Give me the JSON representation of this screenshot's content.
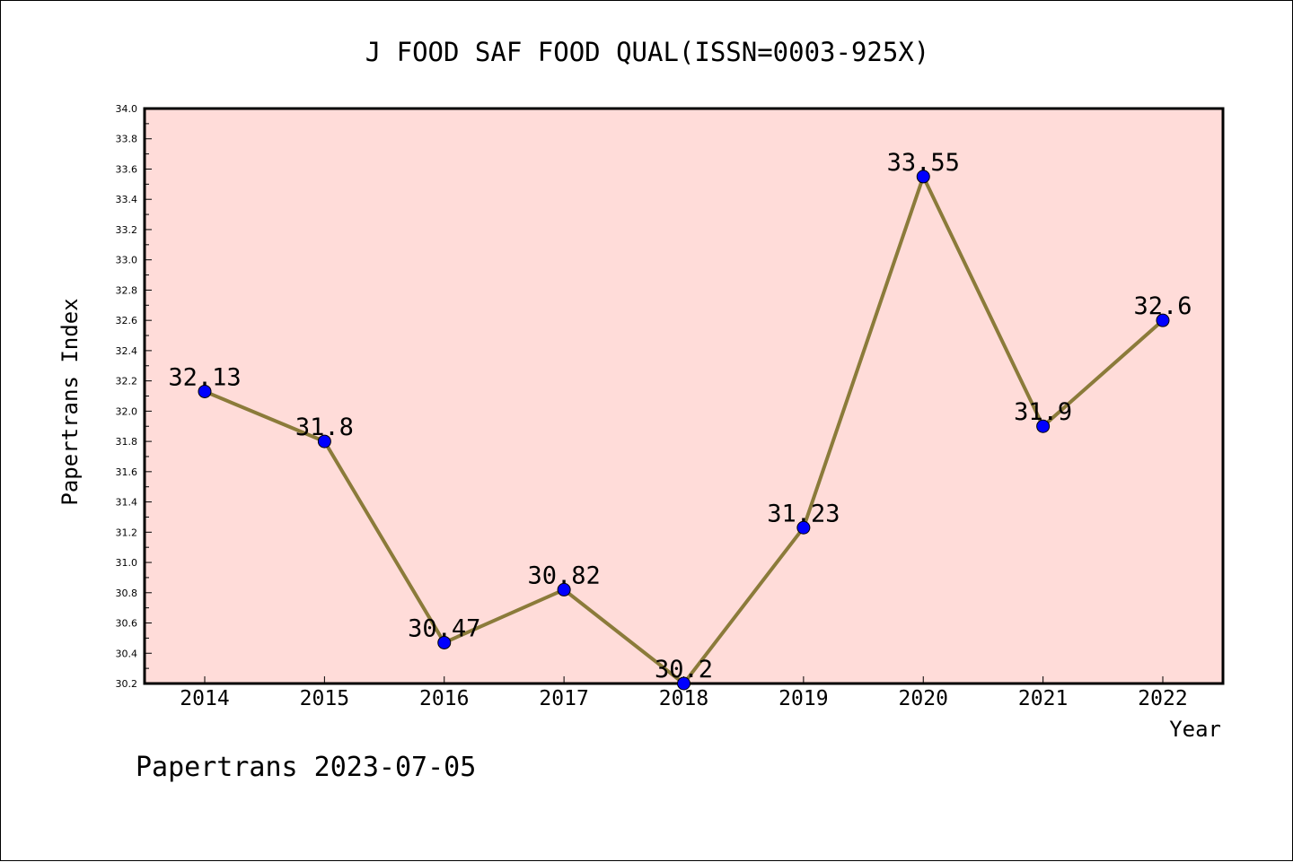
{
  "chart_data": {
    "type": "line",
    "title": "J FOOD SAF FOOD QUAL(ISSN=0003-925X)",
    "xlabel": "Year",
    "ylabel": "Papertrans Index",
    "categories": [
      "2014",
      "2015",
      "2016",
      "2017",
      "2018",
      "2019",
      "2020",
      "2021",
      "2022"
    ],
    "series": [
      {
        "values": [
          32.13,
          31.8,
          30.47,
          30.82,
          30.2,
          31.23,
          33.55,
          31.9,
          32.6
        ],
        "labels": [
          "32.13",
          "31.8",
          "30.47",
          "30.82",
          "30.2",
          "31.23",
          "33.55",
          "31.9",
          "32.6"
        ]
      }
    ],
    "ylim": [
      30.2,
      34.0
    ],
    "yticks": [
      "30.2",
      "30.4",
      "30.6",
      "30.8",
      "31.0",
      "31.2",
      "31.4",
      "31.6",
      "31.8",
      "32.0",
      "32.2",
      "32.4",
      "32.6",
      "32.8",
      "33.0",
      "33.2",
      "33.4",
      "33.6",
      "33.8",
      "34.0"
    ],
    "grid": false,
    "colors": {
      "plot_background": "#ffdcd9",
      "line": "#8b7b3a",
      "marker": "#0000ff"
    }
  },
  "footer": "Papertrans 2023-07-05"
}
